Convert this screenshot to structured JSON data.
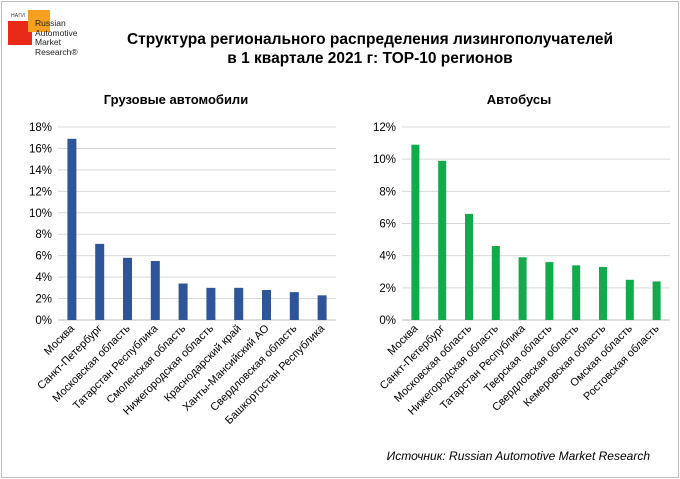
{
  "logo": {
    "small_text": "НАГИ",
    "lines": [
      "Russian",
      "Automotive",
      "Market",
      "Research®"
    ]
  },
  "title_line1": "Структура регионального распределения лизингополучателей",
  "title_line2": "в 1 квартале 2021 г: TOP-10 регионов",
  "source": "Источник: Russian Automotive Market Research",
  "chart_data": [
    {
      "type": "bar",
      "title": "Грузовые автомобили",
      "color": "#2e5597",
      "categories": [
        "Москва",
        "Санкт-Петербург",
        "Московская область",
        "Татарстан Республика",
        "Смоленская область",
        "Нижегородская область",
        "Краснодарский край",
        "Ханты-Мансийский АО",
        "Свердловская область",
        "Башкортостан Республика"
      ],
      "values": [
        16.9,
        7.1,
        5.8,
        5.5,
        3.4,
        3.0,
        3.0,
        2.8,
        2.6,
        2.3
      ],
      "ylim": [
        0,
        18
      ],
      "yticks": [
        0,
        2,
        4,
        6,
        8,
        10,
        12,
        14,
        16,
        18
      ],
      "ytick_format": "{v}%",
      "grid": true,
      "legend": "none"
    },
    {
      "type": "bar",
      "title": "Автобусы",
      "color": "#13a94d",
      "categories": [
        "Москва",
        "Санкт-Петербург",
        "Московская область",
        "Нижегородская область",
        "Татарстан Республика",
        "Тверская область",
        "Свердловская область",
        "Кемеровская область",
        "Омская область",
        "Ростовская область"
      ],
      "values": [
        10.9,
        9.9,
        6.6,
        4.6,
        3.9,
        3.6,
        3.4,
        3.3,
        2.5,
        2.4
      ],
      "ylim": [
        0,
        12
      ],
      "yticks": [
        0,
        2,
        4,
        6,
        8,
        10,
        12
      ],
      "ytick_format": "{v}%",
      "grid": true,
      "legend": "none"
    }
  ]
}
